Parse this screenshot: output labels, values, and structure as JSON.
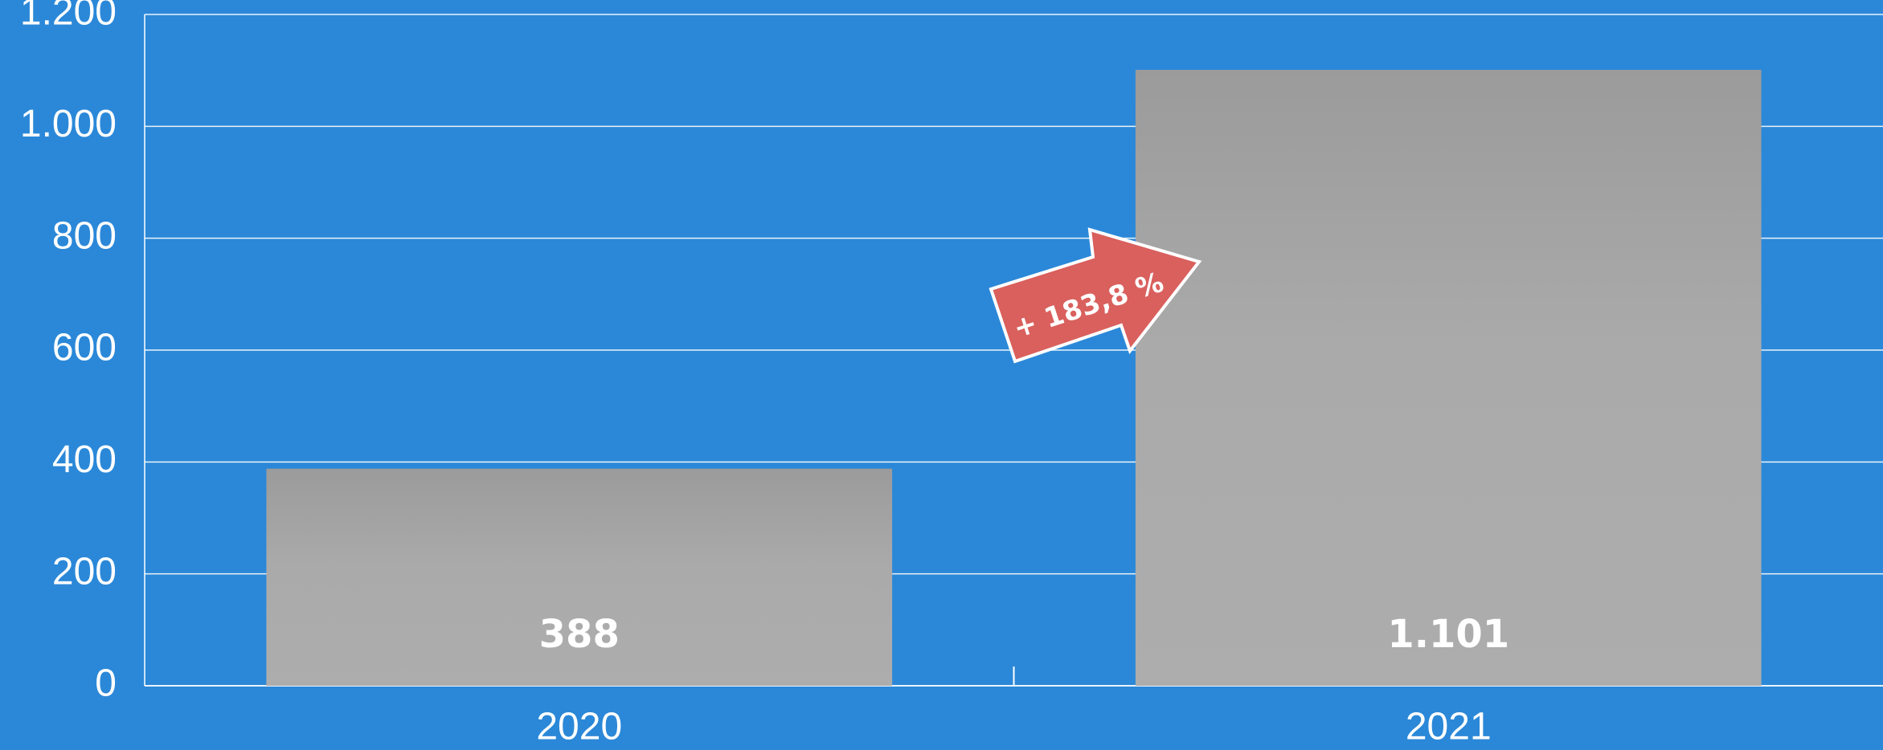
{
  "chart_data": {
    "type": "bar",
    "categories": [
      "2020",
      "2021"
    ],
    "values": [
      388,
      1101
    ],
    "value_labels": [
      "388",
      "1.101"
    ],
    "ylim": [
      0,
      1200
    ],
    "yticks": [
      0,
      200,
      400,
      600,
      800,
      1000,
      1200
    ],
    "ytick_labels": [
      "0",
      "200",
      "400",
      "600",
      "800",
      "1.000",
      "1.200"
    ],
    "grid": true,
    "annotation": "+ 183,8 %",
    "colors": {
      "background": "#2b88d8",
      "bar_top": "#9b9b9b",
      "bar_bottom": "#ababab",
      "grid": "#ffffff",
      "badge": "#d9605d"
    }
  }
}
